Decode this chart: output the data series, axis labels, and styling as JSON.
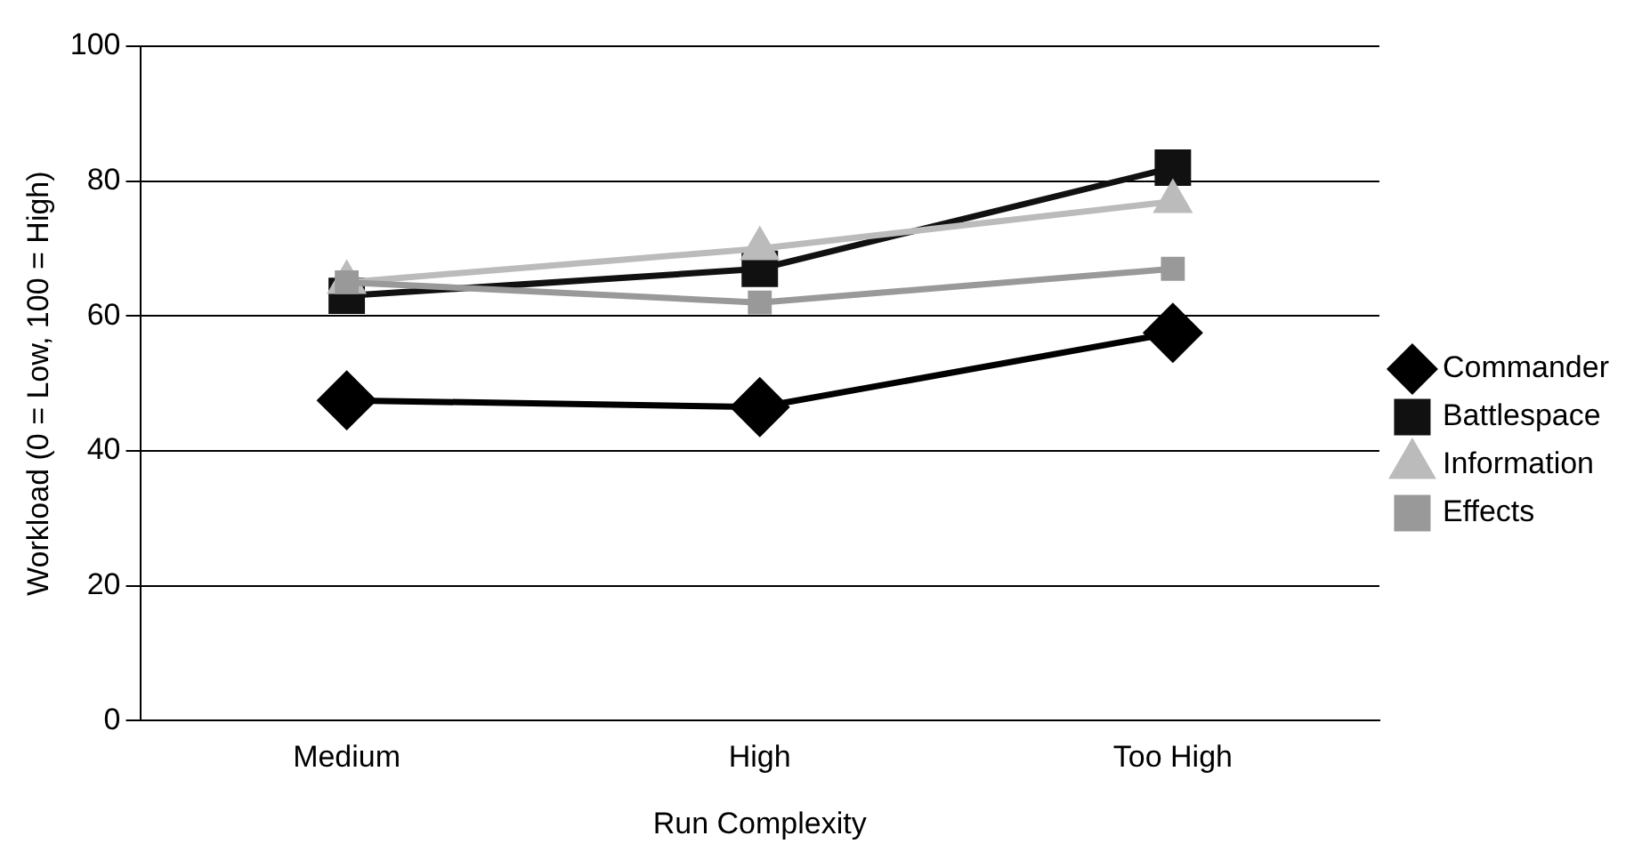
{
  "chart_data": {
    "type": "line",
    "xlabel": "Run Complexity",
    "ylabel": "Workload (0 = Low, 100 = High)",
    "categories": [
      "Medium",
      "High",
      "Too High"
    ],
    "series": [
      {
        "name": "Commander",
        "color": "#000000",
        "marker": "diamond",
        "values": [
          47.5,
          46.5,
          57.5
        ]
      },
      {
        "name": "Battlespace",
        "color": "#111111",
        "marker": "square",
        "values": [
          63,
          67,
          82
        ]
      },
      {
        "name": "Information",
        "color": "#bbbbbb",
        "marker": "triangle",
        "values": [
          65,
          70,
          77
        ]
      },
      {
        "name": "Effects",
        "color": "#999999",
        "marker": "square",
        "values": [
          65,
          62,
          67
        ]
      }
    ],
    "ylim": [
      0,
      100
    ],
    "yticks": [
      0,
      20,
      40,
      60,
      80,
      100
    ],
    "grid": "y",
    "legend": "right"
  }
}
